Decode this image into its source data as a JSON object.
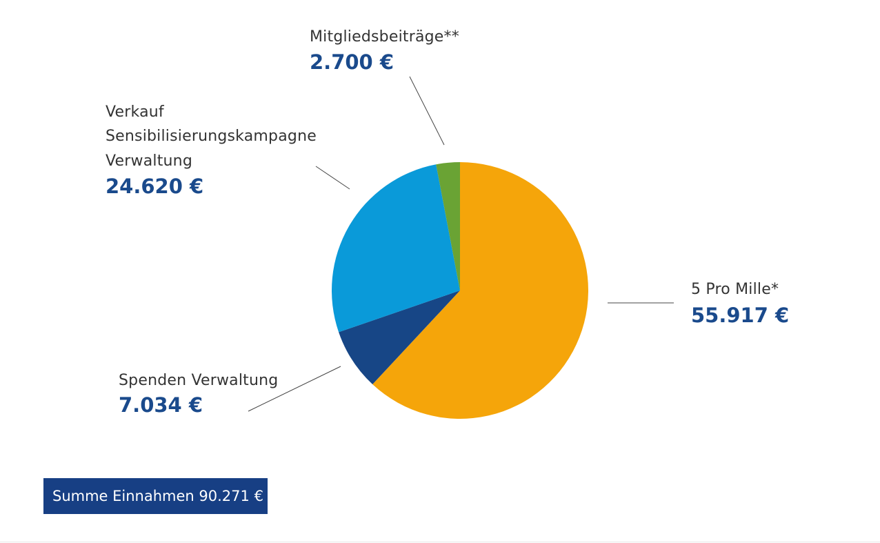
{
  "chart_data": {
    "type": "pie",
    "currency": "€",
    "slices": [
      {
        "label": "5 Pro Mille*",
        "value": 55917,
        "value_text": "55.917 €",
        "color": "#f5a50a"
      },
      {
        "label": "Spenden Verwaltung",
        "value": 7034,
        "value_text": "7.034 €",
        "color": "#174686"
      },
      {
        "label_lines": [
          "Verkauf",
          "Sensibilisierungskampagne",
          "Verwaltung"
        ],
        "value": 24620,
        "value_text": "24.620 €",
        "color": "#0a9ad9"
      },
      {
        "label": "Mitgliedsbeiträge**",
        "value": 2700,
        "value_text": "2.700 €",
        "color": "#6aa334"
      }
    ],
    "total_label": "Summe Einnahmen 90.271 €"
  }
}
